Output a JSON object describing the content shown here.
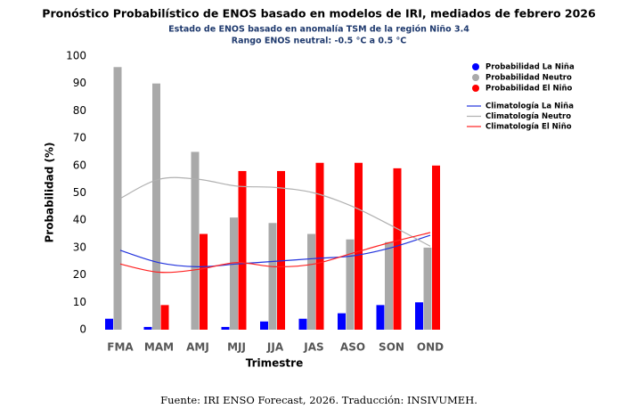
{
  "chart_data": {
    "type": "bar",
    "title": "Pronóstico Probabilístico de ENOS basado en modelos de IRI, mediados de febrero 2026",
    "subtitle": [
      "Estado de ENOS basado en anomalía TSM de la región Niño 3.4",
      "Rango ENOS neutral: -0.5 °C a 0.5 °C"
    ],
    "x_label": "Trimestre",
    "y_label": "Probabilidad (%)",
    "categories": [
      "FMA",
      "MAM",
      "AMJ",
      "MJJ",
      "JJA",
      "JAS",
      "ASO",
      "SON",
      "OND"
    ],
    "series": [
      {
        "name": "Probabilidad La Niña",
        "color": "#0000ff",
        "values": [
          4,
          1,
          0,
          1,
          3,
          4,
          6,
          9,
          10
        ]
      },
      {
        "name": "Probabilidad Neutro",
        "color": "#a9a9a9",
        "values": [
          96,
          90,
          65,
          41,
          39,
          35,
          33,
          32,
          30
        ]
      },
      {
        "name": "Probabilidad El Niño",
        "color": "#ff0000",
        "values": [
          0,
          9,
          35,
          58,
          58,
          61,
          61,
          59,
          60
        ]
      }
    ],
    "lines": [
      {
        "name": "Climatología La Niña",
        "color": "#2233dd",
        "values": [
          29,
          24.5,
          23,
          24,
          25,
          26,
          27,
          30,
          34.5
        ]
      },
      {
        "name": "Climatología Neutro",
        "color": "#b0b0b0",
        "values": [
          48,
          55,
          55,
          52.5,
          52,
          50,
          45,
          38,
          30.5
        ]
      },
      {
        "name": "Climatología El Niño",
        "color": "#ff2222",
        "values": [
          24,
          21,
          22,
          24.5,
          23,
          24,
          28,
          32,
          35.5
        ]
      }
    ],
    "ylim": [
      0,
      100
    ],
    "yticks": [
      0,
      10,
      20,
      30,
      40,
      50,
      60,
      70,
      80,
      90,
      100
    ],
    "grid": false,
    "source": "Fuente: IRI ENSO Forecast, 2026. Traducción: INSIVUMEH."
  }
}
